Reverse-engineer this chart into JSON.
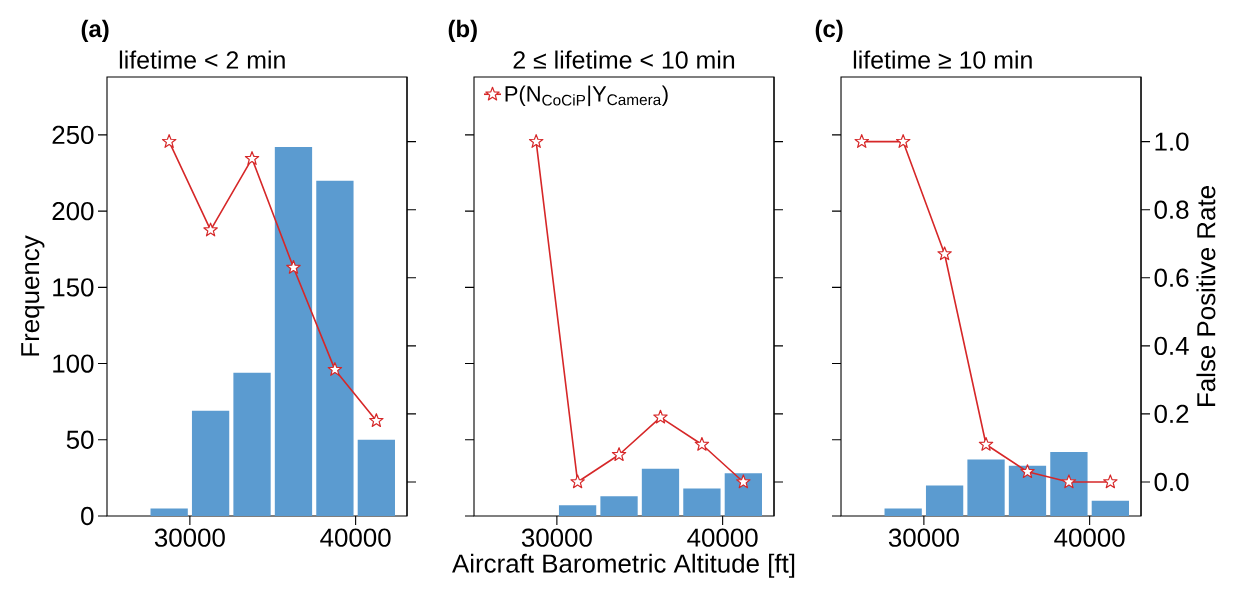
{
  "chart_data": [
    {
      "type": "histogram",
      "title": "lifetime < 2 min",
      "annotations": [
        "(a)"
      ],
      "ylabel": "Frequency",
      "bins": [
        25000,
        27500,
        30000,
        32500,
        35000,
        37500,
        40000,
        42500
      ],
      "values": [
        0,
        5,
        69,
        94,
        242,
        220,
        50
      ],
      "color": "#5b9bd0",
      "xlim": [
        25000,
        43100
      ],
      "xticks": [
        30000,
        40000
      ],
      "ylim": [
        0,
        288
      ],
      "yticks": [
        0,
        50,
        100,
        150,
        200,
        250
      ],
      "y2lim": [
        -0.1,
        1.19
      ],
      "tick_labels": "xy",
      "series": [
        {
          "type": "line",
          "axis": "y2",
          "color": "#d62728",
          "marker": "star",
          "line_style": "solid",
          "x": [
            28750,
            31250,
            33750,
            36250,
            38750,
            41250
          ],
          "values": [
            1.0,
            0.74,
            0.95,
            0.63,
            0.33,
            0.18
          ]
        }
      ]
    },
    {
      "type": "histogram",
      "title": "2 ≤  lifetime < 10 min",
      "annotations": [
        "(b)"
      ],
      "xlabel": "Aircraft Barometric Altitude [ft]",
      "bins": [
        25000,
        27500,
        30000,
        32500,
        35000,
        37500,
        40000,
        42500
      ],
      "values": [
        0,
        0,
        7,
        13,
        31,
        18,
        28
      ],
      "color": "#5b9bd0",
      "xlim": [
        25000,
        43100
      ],
      "xticks": [
        30000,
        40000
      ],
      "ylim": [
        0,
        288
      ],
      "y2lim": [
        -0.1,
        1.19
      ],
      "tick_labels": "x",
      "legend": "top left",
      "series": [
        {
          "type": "line",
          "axis": "y2",
          "name": "P(N$_{CoCiP}$|Y$_{Camera}$)",
          "color": "#d62728",
          "marker": "star",
          "line_style": "solid",
          "x": [
            28750,
            31250,
            33750,
            36250,
            38750,
            41250
          ],
          "values": [
            1.0,
            0.0,
            0.08,
            0.19,
            0.11,
            0.0
          ]
        }
      ]
    },
    {
      "type": "histogram",
      "title": "lifetime ≥ 10 min",
      "annotations": [
        "(c)"
      ],
      "y2label": "False Positive Rate",
      "bins": [
        25000,
        27500,
        30000,
        32500,
        35000,
        37500,
        40000,
        42500
      ],
      "values": [
        0,
        5,
        20,
        37,
        33,
        42,
        10
      ],
      "color": "#5b9bd0",
      "xlim": [
        25000,
        43100
      ],
      "xticks": [
        30000,
        40000
      ],
      "ylim": [
        0,
        288
      ],
      "y2lim": [
        -0.1,
        1.19
      ],
      "tick_labels": "xy2",
      "y2ticks": [
        {
          "value": 0,
          "label": "0.0"
        },
        {
          "value": 0.2,
          "label": "0.2"
        },
        {
          "value": 0.4,
          "label": "0.4"
        },
        {
          "value": 0.6,
          "label": "0.6"
        },
        {
          "value": 0.8,
          "label": "0.8"
        },
        {
          "value": 1.0,
          "label": "1.0"
        }
      ],
      "series": [
        {
          "type": "line",
          "axis": "y2",
          "color": "#d62728",
          "marker": "star",
          "line_style": "solid",
          "x": [
            26250,
            28750,
            31250,
            33750,
            36250,
            38750,
            41250
          ],
          "values": [
            1.0,
            1.0,
            0.67,
            0.11,
            0.03,
            0.0,
            0.0
          ]
        }
      ]
    }
  ]
}
